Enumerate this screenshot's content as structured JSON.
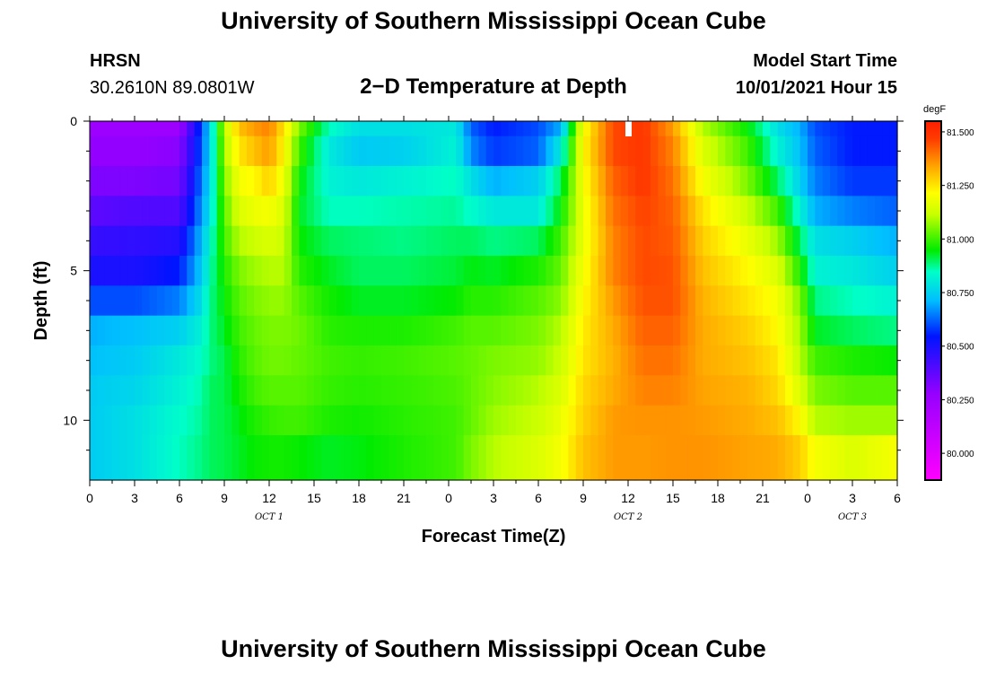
{
  "title_top": "University of Southern Mississippi Ocean Cube",
  "title_bottom": "University of Southern Mississippi Ocean Cube",
  "station": {
    "name": "HRSN",
    "coords": "30.2610N  89.0801W"
  },
  "plot_title": "2−D Temperature at Depth",
  "model": {
    "label": "Model Start Time",
    "value": "10/01/2021 Hour 15"
  },
  "chart_data": {
    "type": "heatmap",
    "xlabel": "Forecast Time(Z)",
    "ylabel": "Depth (ft)",
    "x_hours": [
      0,
      54
    ],
    "x_tick_labels": [
      "0",
      "3",
      "6",
      "9",
      "12",
      "15",
      "18",
      "21",
      "0",
      "3",
      "6",
      "9",
      "12",
      "15",
      "18",
      "21",
      "0",
      "3",
      "6"
    ],
    "day_labels": [
      {
        "text": "OCT 1",
        "hour": 12
      },
      {
        "text": "OCT 2",
        "hour": 36
      },
      {
        "text": "OCT 3",
        "hour": 51
      }
    ],
    "ylim": [
      0,
      12
    ],
    "y_tick_labels": [
      "0",
      "5",
      "10"
    ],
    "colorbar": {
      "unit": "degF",
      "min": 79.875,
      "max": 81.55,
      "tick_labels": [
        "81.500",
        "81.250",
        "81.000",
        "80.750",
        "80.500",
        "80.250",
        "80.000"
      ],
      "tick_values": [
        81.5,
        81.25,
        81.0,
        80.75,
        80.5,
        80.25,
        80.0
      ]
    },
    "depth_levels_ft": [
      0,
      1,
      2,
      3,
      4,
      5,
      6,
      7,
      8,
      9,
      10,
      11
    ],
    "depth_profiles": [
      {
        "hour": 0,
        "temps": [
          80.25,
          80.28,
          80.32,
          80.38,
          80.45,
          80.5,
          80.6,
          80.7,
          80.72,
          80.74,
          80.74,
          80.74
        ]
      },
      {
        "hour": 3,
        "temps": [
          80.25,
          80.28,
          80.32,
          80.4,
          80.46,
          80.5,
          80.6,
          80.72,
          80.74,
          80.76,
          80.78,
          80.78
        ]
      },
      {
        "hour": 6,
        "temps": [
          80.25,
          80.3,
          80.34,
          80.4,
          80.48,
          80.55,
          80.65,
          80.75,
          80.8,
          80.82,
          80.84,
          80.85
        ]
      },
      {
        "hour": 7.5,
        "temps": [
          80.6,
          80.62,
          80.65,
          80.68,
          80.72,
          80.74,
          80.78,
          80.82,
          80.84,
          80.86,
          80.87,
          80.88
        ]
      },
      {
        "hour": 8,
        "temps": [
          80.75,
          80.75,
          80.76,
          80.78,
          80.82,
          80.85,
          80.87,
          80.88,
          80.88,
          80.9,
          80.9,
          80.9
        ]
      },
      {
        "hour": 9,
        "temps": [
          81.1,
          81.08,
          81.05,
          81.02,
          81.0,
          80.97,
          80.95,
          80.93,
          80.91,
          80.91,
          80.91,
          80.91
        ]
      },
      {
        "hour": 10,
        "temps": [
          81.3,
          81.25,
          81.2,
          81.15,
          81.1,
          81.05,
          81.02,
          81.0,
          80.98,
          80.96,
          80.94,
          80.93
        ]
      },
      {
        "hour": 11,
        "temps": [
          81.35,
          81.3,
          81.22,
          81.18,
          81.12,
          81.08,
          81.05,
          81.03,
          81.02,
          81.0,
          80.97,
          80.95
        ]
      },
      {
        "hour": 12,
        "temps": [
          81.38,
          81.35,
          81.28,
          81.2,
          81.15,
          81.1,
          81.07,
          81.05,
          81.04,
          81.02,
          80.99,
          80.96
        ]
      },
      {
        "hour": 13,
        "temps": [
          81.25,
          81.22,
          81.18,
          81.15,
          81.12,
          81.1,
          81.07,
          81.05,
          81.04,
          81.02,
          81.0,
          80.96
        ]
      },
      {
        "hour": 14,
        "temps": [
          81.05,
          81.0,
          80.95,
          80.93,
          80.95,
          80.98,
          81.02,
          81.04,
          81.03,
          81.02,
          81.0,
          80.95
        ]
      },
      {
        "hour": 16,
        "temps": [
          80.85,
          80.8,
          80.82,
          80.85,
          80.9,
          80.93,
          80.96,
          80.98,
          81.0,
          80.99,
          80.97,
          80.93
        ]
      },
      {
        "hour": 18,
        "temps": [
          80.78,
          80.74,
          80.8,
          80.85,
          80.89,
          80.9,
          80.93,
          80.97,
          80.99,
          80.98,
          80.96,
          80.94
        ]
      },
      {
        "hour": 21,
        "temps": [
          80.78,
          80.75,
          80.82,
          80.86,
          80.88,
          80.9,
          80.93,
          80.97,
          81.0,
          80.99,
          80.98,
          80.97
        ]
      },
      {
        "hour": 24.5,
        "temps": [
          80.8,
          80.82,
          80.85,
          80.87,
          80.9,
          80.92,
          80.95,
          81.0,
          81.02,
          81.01,
          81.0,
          81.0
        ]
      },
      {
        "hour": 25.5,
        "temps": [
          80.62,
          80.66,
          80.78,
          80.84,
          80.9,
          80.94,
          80.98,
          81.02,
          81.03,
          81.03,
          81.03,
          81.05
        ]
      },
      {
        "hour": 27,
        "temps": [
          80.55,
          80.58,
          80.7,
          80.8,
          80.88,
          80.93,
          80.98,
          81.02,
          81.05,
          81.06,
          81.08,
          81.1
        ]
      },
      {
        "hour": 30,
        "temps": [
          80.6,
          80.62,
          80.75,
          80.8,
          80.9,
          80.97,
          81.02,
          81.05,
          81.07,
          81.1,
          81.12,
          81.15
        ]
      },
      {
        "hour": 31.5,
        "temps": [
          80.7,
          80.8,
          80.9,
          80.95,
          81.0,
          81.03,
          81.06,
          81.1,
          81.12,
          81.15,
          81.18,
          81.2
        ]
      },
      {
        "hour": 33,
        "temps": [
          81.2,
          81.22,
          81.2,
          81.18,
          81.18,
          81.2,
          81.22,
          81.24,
          81.25,
          81.27,
          81.28,
          81.3
        ]
      },
      {
        "hour": 35,
        "temps": [
          81.45,
          81.45,
          81.42,
          81.4,
          81.38,
          81.38,
          81.35,
          81.33,
          81.32,
          81.33,
          81.35,
          81.35
        ]
      },
      {
        "hour": 37,
        "temps": [
          81.48,
          81.48,
          81.48,
          81.46,
          81.45,
          81.45,
          81.44,
          81.42,
          81.4,
          81.38,
          81.36,
          81.35
        ]
      },
      {
        "hour": 39,
        "temps": [
          81.35,
          81.38,
          81.4,
          81.42,
          81.43,
          81.44,
          81.44,
          81.42,
          81.4,
          81.38,
          81.36,
          81.36
        ]
      },
      {
        "hour": 41,
        "temps": [
          81.1,
          81.15,
          81.2,
          81.25,
          81.28,
          81.3,
          81.32,
          81.33,
          81.33,
          81.34,
          81.35,
          81.36
        ]
      },
      {
        "hour": 44,
        "temps": [
          80.95,
          81.0,
          81.05,
          81.12,
          81.18,
          81.22,
          81.25,
          81.28,
          81.3,
          81.32,
          81.33,
          81.34
        ]
      },
      {
        "hour": 46,
        "temps": [
          80.78,
          80.82,
          80.9,
          81.0,
          81.08,
          81.15,
          81.2,
          81.22,
          81.25,
          81.27,
          81.3,
          81.33
        ]
      },
      {
        "hour": 47.5,
        "temps": [
          80.7,
          80.72,
          80.75,
          80.82,
          80.9,
          80.97,
          81.05,
          81.08,
          81.1,
          81.15,
          81.22,
          81.28
        ]
      },
      {
        "hour": 48.5,
        "temps": [
          80.6,
          80.62,
          80.65,
          80.7,
          80.78,
          80.82,
          80.88,
          80.93,
          81.0,
          81.05,
          81.1,
          81.2
        ]
      },
      {
        "hour": 51,
        "temps": [
          80.55,
          80.55,
          80.58,
          80.65,
          80.75,
          80.8,
          80.85,
          80.9,
          80.97,
          81.02,
          81.08,
          81.15
        ]
      },
      {
        "hour": 54,
        "temps": [
          80.55,
          80.55,
          80.58,
          80.62,
          80.7,
          80.75,
          80.82,
          80.88,
          80.95,
          81.02,
          81.08,
          81.2
        ]
      }
    ],
    "now_marker_hour": 36
  }
}
